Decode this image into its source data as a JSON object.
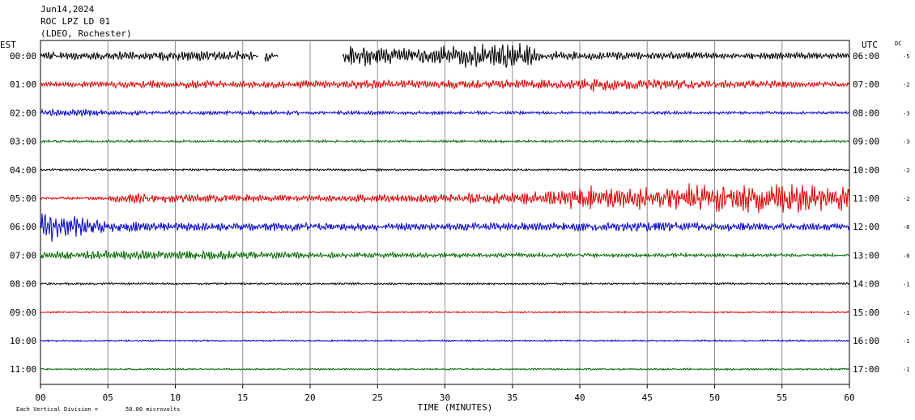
{
  "header": {
    "date": "Jun14,2024",
    "station": "ROC LPZ LD 01",
    "network": "(LDEO, Rochester)"
  },
  "chart_data": {
    "type": "line",
    "chart_kind": "seismogram helicorder",
    "left_axis_title": "EST",
    "right_axis_title": "UTC",
    "dc_title": "DC",
    "xlabel": "TIME (MINUTES)",
    "xlim": [
      0,
      60
    ],
    "x_ticks": [
      "00",
      "05",
      "10",
      "15",
      "20",
      "25",
      "30",
      "35",
      "40",
      "45",
      "50",
      "55",
      "60"
    ],
    "grid": "vertical lines every 5 minutes",
    "scale_note": "Each Vertical Division =",
    "scale_value": "50.00 microvolts",
    "rows": [
      {
        "est": "00:00",
        "utc": "06:00",
        "dc": "-5",
        "color": "#000000",
        "amplitude": [
          [
            0,
            0.35
          ],
          [
            15.5,
            0.5
          ],
          [
            16.2,
            0
          ],
          [
            16.6,
            0.9
          ],
          [
            17.3,
            0.1
          ],
          [
            22.3,
            0
          ],
          [
            22.6,
            1.1
          ],
          [
            26,
            0.8
          ],
          [
            28,
            0.7
          ],
          [
            32,
            1.1
          ],
          [
            36,
            1.2
          ],
          [
            37,
            0.5
          ],
          [
            45,
            0.35
          ],
          [
            60,
            0.3
          ]
        ],
        "gaps": [
          [
            16.2,
            16.6
          ],
          [
            17.6,
            22.4
          ]
        ]
      },
      {
        "est": "01:00",
        "utc": "07:00",
        "dc": "-2",
        "color": "#dd0000",
        "amplitude": [
          [
            0,
            0.25
          ],
          [
            10.5,
            0.4
          ],
          [
            15,
            0.35
          ],
          [
            23,
            0.4
          ],
          [
            40,
            0.45
          ],
          [
            41,
            0.7
          ],
          [
            44,
            0.5
          ],
          [
            60,
            0.25
          ]
        ],
        "gaps": []
      },
      {
        "est": "02:00",
        "utc": "08:00",
        "dc": "-3",
        "color": "#0000cc",
        "amplitude": [
          [
            0,
            0.3
          ],
          [
            3,
            0.4
          ],
          [
            5,
            0.2
          ],
          [
            60,
            0.12
          ]
        ],
        "gaps": []
      },
      {
        "est": "03:00",
        "utc": "09:00",
        "dc": "-3",
        "color": "#006600",
        "amplitude": [
          [
            0,
            0.12
          ],
          [
            60,
            0.12
          ]
        ],
        "gaps": []
      },
      {
        "est": "04:00",
        "utc": "10:00",
        "dc": "-2",
        "color": "#000000",
        "amplitude": [
          [
            0,
            0.1
          ],
          [
            60,
            0.1
          ]
        ],
        "gaps": []
      },
      {
        "est": "05:00",
        "utc": "11:00",
        "dc": "-2",
        "color": "#dd0000",
        "amplitude": [
          [
            0,
            0.12
          ],
          [
            5,
            0.15
          ],
          [
            5.6,
            0.5
          ],
          [
            10,
            0.4
          ],
          [
            20,
            0.3
          ],
          [
            30,
            0.45
          ],
          [
            36,
            0.6
          ],
          [
            41,
            1.2
          ],
          [
            46,
            1.0
          ],
          [
            48,
            1.4
          ],
          [
            60,
            1.2
          ]
        ],
        "gaps": []
      },
      {
        "est": "06:00",
        "utc": "12:00",
        "dc": "-6",
        "color": "#0000cc",
        "amplitude": [
          [
            0,
            1.6
          ],
          [
            2.5,
            1.0
          ],
          [
            5,
            0.5
          ],
          [
            10,
            0.4
          ],
          [
            30,
            0.35
          ],
          [
            45,
            0.45
          ],
          [
            60,
            0.3
          ]
        ],
        "gaps": []
      },
      {
        "est": "07:00",
        "utc": "13:00",
        "dc": "-0",
        "color": "#006600",
        "amplitude": [
          [
            0,
            0.35
          ],
          [
            6,
            0.5
          ],
          [
            10,
            0.45
          ],
          [
            20,
            0.3
          ],
          [
            35,
            0.2
          ],
          [
            60,
            0.15
          ]
        ],
        "gaps": []
      },
      {
        "est": "08:00",
        "utc": "14:00",
        "dc": "-1",
        "color": "#000000",
        "amplitude": [
          [
            0,
            0.1
          ],
          [
            60,
            0.1
          ]
        ],
        "gaps": []
      },
      {
        "est": "09:00",
        "utc": "15:00",
        "dc": "-1",
        "color": "#dd0000",
        "amplitude": [
          [
            0,
            0.08
          ],
          [
            60,
            0.08
          ]
        ],
        "gaps": []
      },
      {
        "est": "10:00",
        "utc": "16:00",
        "dc": "-1",
        "color": "#0000cc",
        "amplitude": [
          [
            0,
            0.08
          ],
          [
            60,
            0.08
          ]
        ],
        "gaps": []
      },
      {
        "est": "11:00",
        "utc": "17:00",
        "dc": "-1",
        "color": "#006600",
        "amplitude": [
          [
            0,
            0.08
          ],
          [
            60,
            0.09
          ]
        ],
        "gaps": []
      }
    ]
  }
}
